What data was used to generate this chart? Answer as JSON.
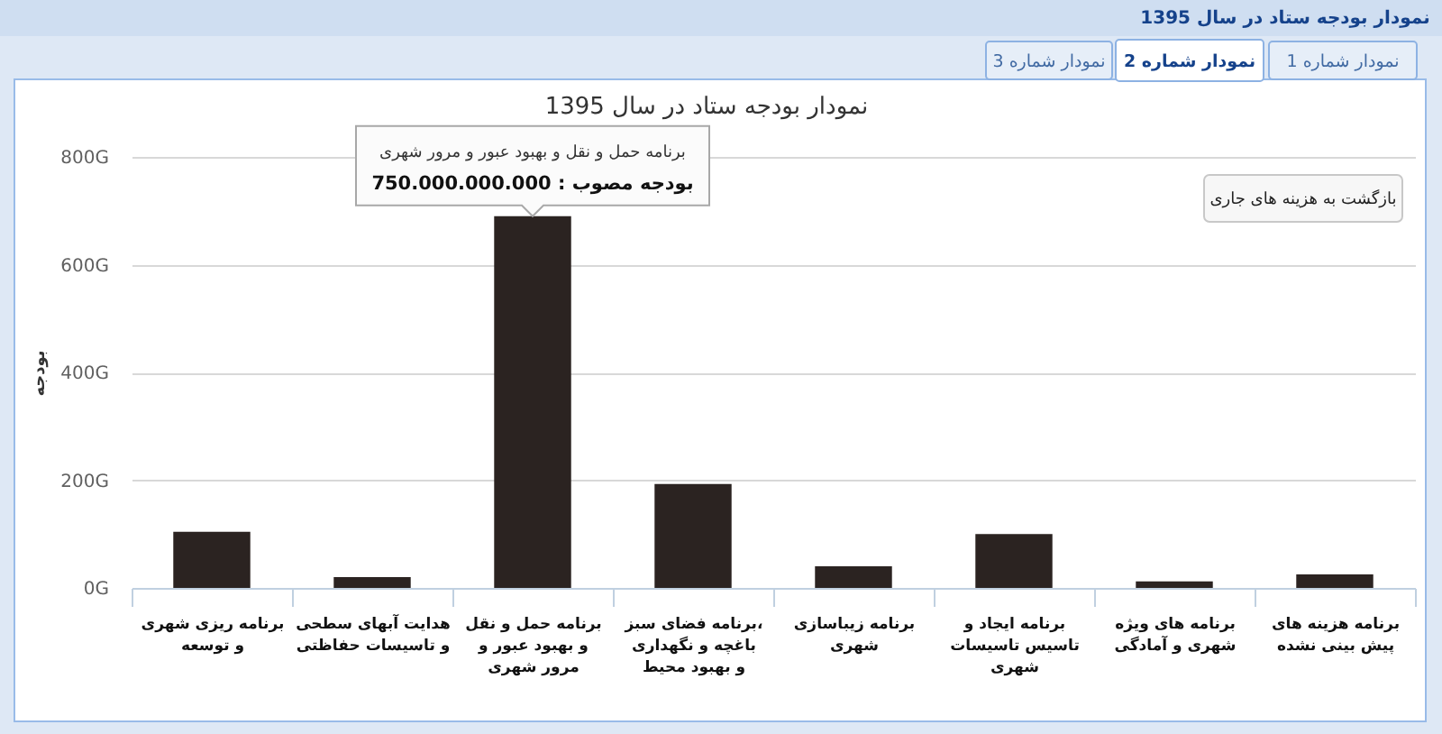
{
  "chart_data": {
    "type": "bar",
    "title": "نمودار بودجه ستاد در سال 1395",
    "ylabel": "بودجه",
    "categories": [
      "برنامه ریزی شهری\nو توسعه",
      "هدایت آبهای سطحی\nو تاسیسات حفاظتی",
      "برنامه حمل و نقل\nو بهبود عبور و\nمرور شهری",
      "برنامه فضای سبز،\nباغچه و نگهداری\nو بهبود محیط",
      "برنامه زیباسازی\nشهری",
      "برنامه ایجاد و\nتاسیس تاسیسات\nشهری",
      "برنامه های ویژه\nشهری و آمادگی",
      "برنامه هزینه های\nپیش بینی نشده"
    ],
    "values": [
      104,
      20,
      690,
      193,
      40,
      100,
      12,
      25
    ],
    "color": "#2b2321",
    "ylim": [
      0,
      800
    ],
    "yticks": [
      {
        "value": 0,
        "label": "0G"
      },
      {
        "value": 200,
        "label": "200G"
      },
      {
        "value": 400,
        "label": "400G"
      },
      {
        "value": 600,
        "label": "600G"
      },
      {
        "value": 800,
        "label": "800G"
      }
    ],
    "grid": "y",
    "annotations": [
      "نمودار بودجه ستاد در سال 1395",
      "نمودار شماره 1",
      "نمودار شماره 2",
      "نمودار شماره 3",
      "بازگشت به هزینه های جاری",
      {
        "text": "برنامه حمل و نقل و بهبود عبور و مرور شهری\nبودجه مصوب : 750.000.000.000",
        "x": "برنامه حمل و نقل\nو بهبود عبور و\nمرور شهری",
        "y": 690
      }
    ]
  }
}
